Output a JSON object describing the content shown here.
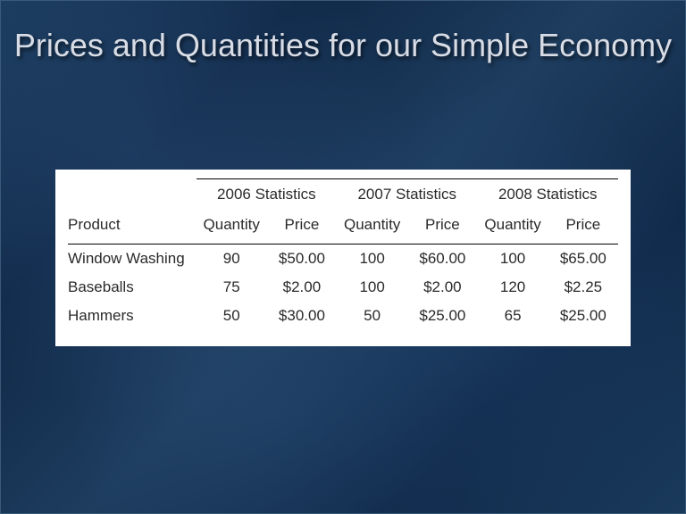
{
  "slide": {
    "title": "Prices and Quantities for our Simple Economy",
    "title_color": "#d8dce5",
    "title_fontsize": 36,
    "background_color": "#163452"
  },
  "table": {
    "type": "table",
    "background_color": "#ffffff",
    "text_color": "#2a2a2a",
    "fontsize": 17,
    "border_color": "#000000",
    "year_groups": [
      "2006 Statistics",
      "2007 Statistics",
      "2008 Statistics"
    ],
    "product_header": "Product",
    "sub_headers": [
      "Quantity",
      "Price"
    ],
    "rows": [
      {
        "product": "Window Washing",
        "y2006": {
          "quantity": "90",
          "price": "$50.00"
        },
        "y2007": {
          "quantity": "100",
          "price": "$60.00"
        },
        "y2008": {
          "quantity": "100",
          "price": "$65.00"
        }
      },
      {
        "product": "Baseballs",
        "y2006": {
          "quantity": "75",
          "price": "$2.00"
        },
        "y2007": {
          "quantity": "100",
          "price": "$2.00"
        },
        "y2008": {
          "quantity": "120",
          "price": "$2.25"
        }
      },
      {
        "product": "Hammers",
        "y2006": {
          "quantity": "50",
          "price": "$30.00"
        },
        "y2007": {
          "quantity": "50",
          "price": "$25.00"
        },
        "y2008": {
          "quantity": "65",
          "price": "$25.00"
        }
      }
    ]
  }
}
